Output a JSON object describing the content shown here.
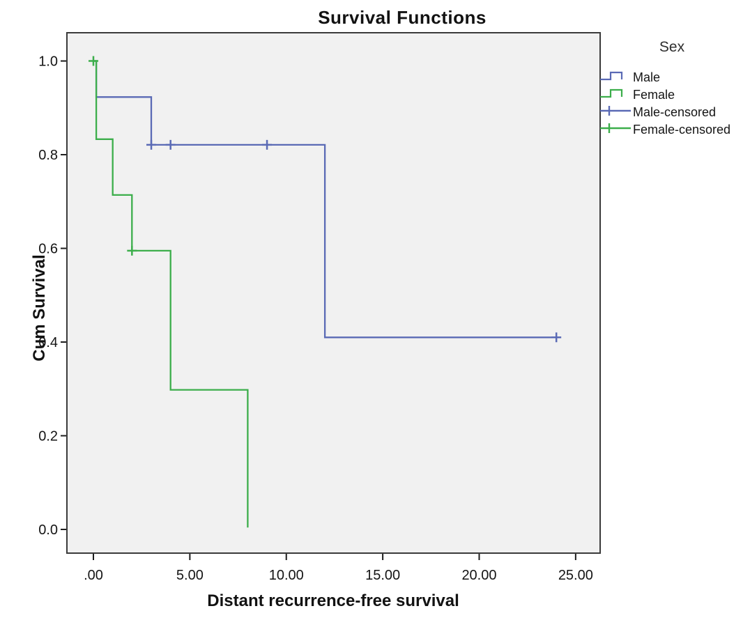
{
  "figure": {
    "title": "Survival Functions",
    "legend": {
      "title": "Sex",
      "items": [
        {
          "label": "Male",
          "glyph": "step",
          "color": "#5a6ab5"
        },
        {
          "label": "Female",
          "glyph": "step",
          "color": "#3cae4b"
        },
        {
          "label": "Male-censored",
          "glyph": "censored",
          "color": "#5a6ab5"
        },
        {
          "label": "Female-censored",
          "glyph": "censored",
          "color": "#3cae4b"
        }
      ]
    }
  },
  "chart_data": {
    "type": "line",
    "subtype": "kaplan-meier-step",
    "title": "Survival Functions",
    "xlabel": "Distant recurrence-free survival",
    "ylabel": "Cum Survival",
    "legend_title": "Sex",
    "legend_position": "right",
    "grid": false,
    "plot_bg": "#f1f1f1",
    "frame_color": "#3a3a3a",
    "tick_color": "#1c1c1c",
    "label_color": "#141414",
    "xlim": [
      -1.373,
      26.27
    ],
    "ylim": [
      -0.0506,
      1.0603
    ],
    "x_ticks": [
      {
        "value": 0,
        "label": ".00"
      },
      {
        "value": 5,
        "label": "5.00"
      },
      {
        "value": 10,
        "label": "10.00"
      },
      {
        "value": 15,
        "label": "15.00"
      },
      {
        "value": 20,
        "label": "20.00"
      },
      {
        "value": 25,
        "label": "25.00"
      }
    ],
    "y_ticks": [
      {
        "value": 0.0,
        "label": "0.0"
      },
      {
        "value": 0.2,
        "label": "0.2"
      },
      {
        "value": 0.4,
        "label": "0.4"
      },
      {
        "value": 0.6,
        "label": "0.6"
      },
      {
        "value": 0.8,
        "label": "0.8"
      },
      {
        "value": 1.0,
        "label": "1.0"
      }
    ],
    "series": [
      {
        "name": "Male",
        "color": "#5a6ab5",
        "points": [
          [
            0,
            1.0
          ],
          [
            0.15,
            1.0
          ],
          [
            0.15,
            0.923
          ],
          [
            3,
            0.923
          ],
          [
            3,
            0.821
          ],
          [
            12,
            0.821
          ],
          [
            12,
            0.41
          ],
          [
            24,
            0.41
          ]
        ],
        "censored": [
          [
            3,
            0.821
          ],
          [
            4,
            0.821
          ],
          [
            9,
            0.821
          ],
          [
            24,
            0.41
          ]
        ]
      },
      {
        "name": "Female",
        "color": "#3cae4b",
        "points": [
          [
            0,
            1.0
          ],
          [
            0.15,
            1.0
          ],
          [
            0.15,
            0.833
          ],
          [
            1,
            0.833
          ],
          [
            1,
            0.714
          ],
          [
            2,
            0.714
          ],
          [
            2,
            0.595
          ],
          [
            4,
            0.595
          ],
          [
            4,
            0.298
          ],
          [
            8,
            0.298
          ],
          [
            8,
            0.004
          ]
        ],
        "censored": [
          [
            0,
            1.0
          ],
          [
            2,
            0.595
          ]
        ]
      }
    ]
  }
}
